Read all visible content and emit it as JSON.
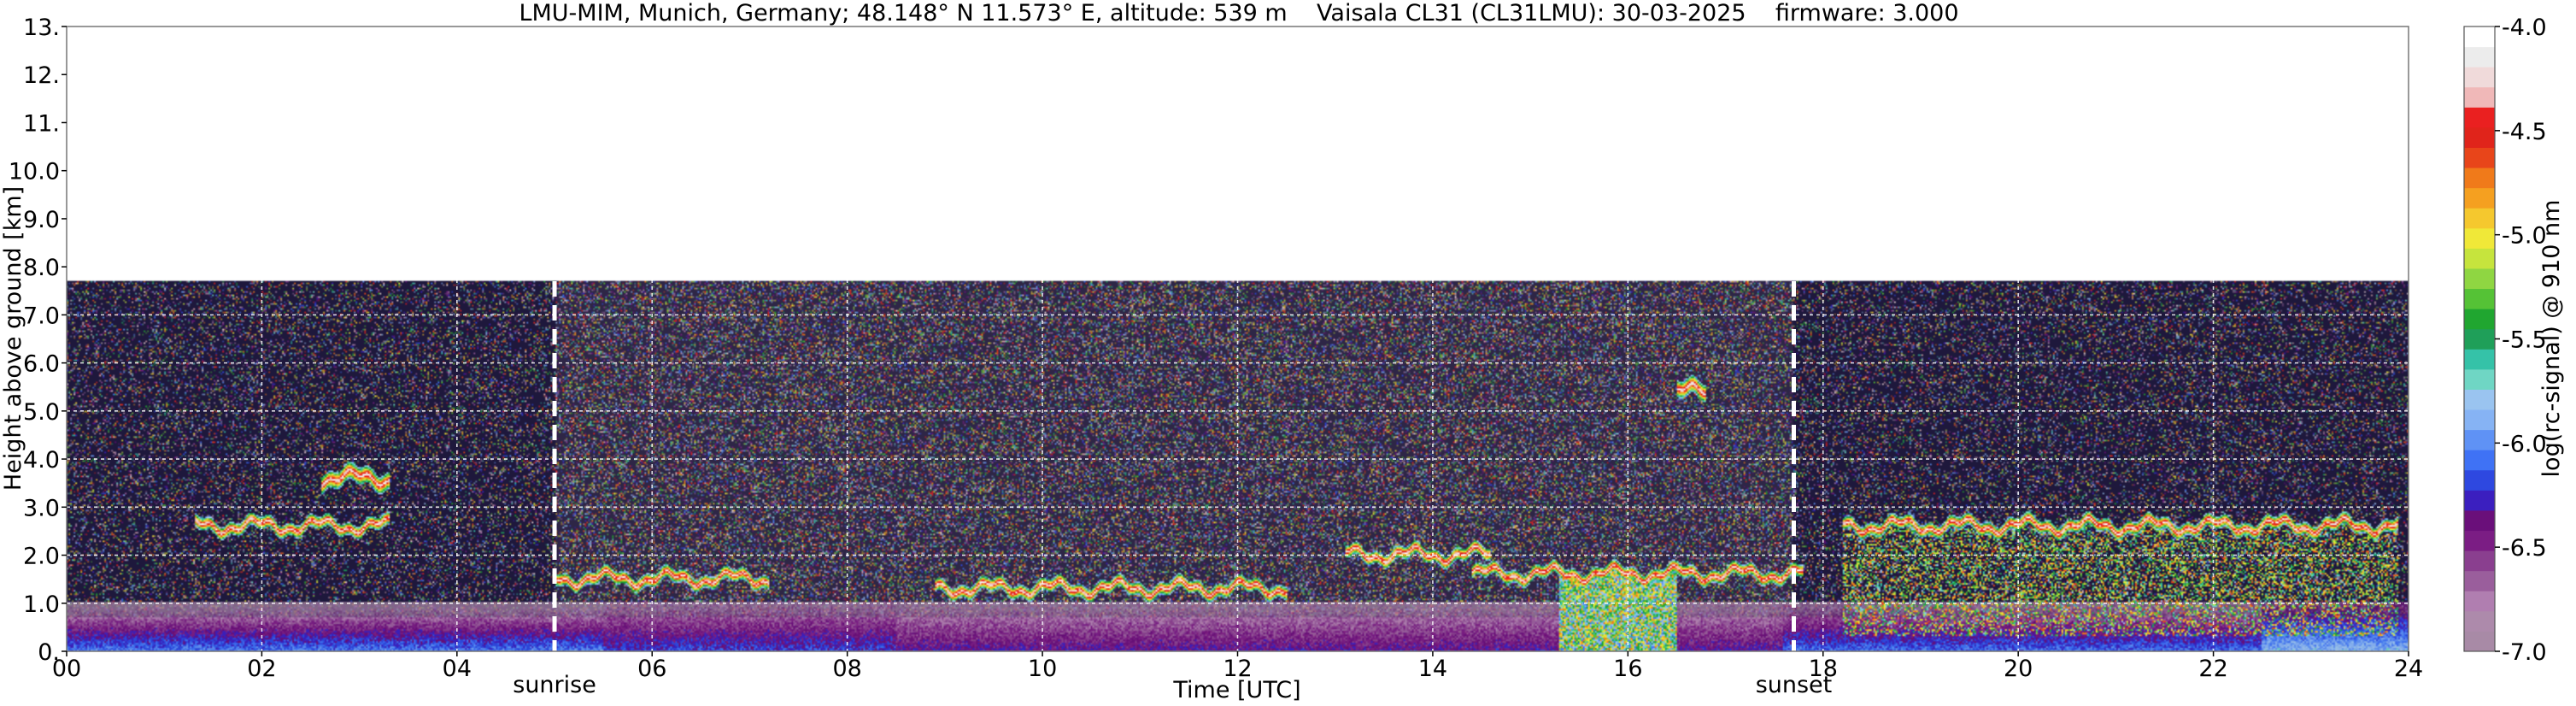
{
  "chart_data": {
    "type": "heatmap",
    "title": "LMU-MIM, Munich, Germany; 48.148° N 11.573° E, altitude: 539 m    Vaisala CL31 (CL31LMU): 30-03-2025    firmware: 3.000",
    "xlabel": "Time [UTC]",
    "ylabel": "Height above ground [km]",
    "xlim": [
      0,
      24
    ],
    "ylim": [
      0,
      13
    ],
    "x_ticks": [
      {
        "value": 0,
        "label": "00"
      },
      {
        "value": 2,
        "label": "02"
      },
      {
        "value": 4,
        "label": "04"
      },
      {
        "value": 6,
        "label": "06"
      },
      {
        "value": 8,
        "label": "08"
      },
      {
        "value": 10,
        "label": "10"
      },
      {
        "value": 12,
        "label": "12"
      },
      {
        "value": 14,
        "label": "14"
      },
      {
        "value": 16,
        "label": "16"
      },
      {
        "value": 18,
        "label": "18"
      },
      {
        "value": 20,
        "label": "20"
      },
      {
        "value": 22,
        "label": "22"
      },
      {
        "value": 24,
        "label": "24"
      }
    ],
    "y_ticks": [
      {
        "value": 0,
        "label": "0."
      },
      {
        "value": 1,
        "label": "1.0"
      },
      {
        "value": 2,
        "label": "2.0"
      },
      {
        "value": 3,
        "label": "3.0"
      },
      {
        "value": 4,
        "label": "4.0"
      },
      {
        "value": 5,
        "label": "5.0"
      },
      {
        "value": 6,
        "label": "6.0"
      },
      {
        "value": 7,
        "label": "7.0"
      },
      {
        "value": 8,
        "label": "8.0"
      },
      {
        "value": 9,
        "label": "9.0"
      },
      {
        "value": 10,
        "label": "10.0"
      },
      {
        "value": 11,
        "label": "11."
      },
      {
        "value": 12,
        "label": "12."
      },
      {
        "value": 13,
        "label": "13."
      }
    ],
    "grid": true,
    "data_max_height_km": 7.7,
    "events": [
      {
        "label": "sunrise",
        "time": 5.0
      },
      {
        "label": "sunset",
        "time": 17.7
      }
    ],
    "colorbar": {
      "label": "log(rc-signal) @ 910 nm",
      "range": [
        -7.0,
        -4.0
      ],
      "ticks": [
        {
          "value": -4.0,
          "label": "-4.0"
        },
        {
          "value": -4.5,
          "label": "-4.5"
        },
        {
          "value": -5.0,
          "label": "-5.0"
        },
        {
          "value": -5.5,
          "label": "-5.5"
        },
        {
          "value": -6.0,
          "label": "-6.0"
        },
        {
          "value": -6.5,
          "label": "-6.5"
        },
        {
          "value": -7.0,
          "label": "-7.0"
        }
      ],
      "colors": [
        "#a88aa6",
        "#ad8aab",
        "#b07eb0",
        "#9a5e9c",
        "#8a3f8f",
        "#7b1d84",
        "#6a0f7a",
        "#3b1fbf",
        "#2e48e0",
        "#3f72f5",
        "#5f92f5",
        "#86b3f4",
        "#9ac4f0",
        "#6fd6c4",
        "#35c2a8",
        "#1f9f59",
        "#20a630",
        "#55c236",
        "#8fd642",
        "#c6e43d",
        "#f0e838",
        "#f5c82e",
        "#f5a020",
        "#f07a1a",
        "#e8451a",
        "#e0241b",
        "#ea2020",
        "#f0b8b8",
        "#f0dada",
        "#ececec",
        "#ffffff"
      ]
    },
    "features": [
      {
        "name": "cloud layer",
        "time_range": [
          1.3,
          3.3
        ],
        "height_km": 2.6
      },
      {
        "name": "cloud layer",
        "time_range": [
          5.0,
          7.2
        ],
        "height_km": 1.5
      },
      {
        "name": "cloud layer",
        "time_range": [
          8.9,
          12.5
        ],
        "height_km": 1.3
      },
      {
        "name": "cloud layer",
        "time_range": [
          13.1,
          14.6
        ],
        "height_km": 2.0
      },
      {
        "name": "cloud layer",
        "time_range": [
          14.4,
          17.8
        ],
        "height_km": 1.6
      },
      {
        "name": "precipitation",
        "time_range": [
          15.3,
          16.5
        ],
        "height_km": 1.5
      },
      {
        "name": "cloud layer",
        "time_range": [
          18.2,
          23.9
        ],
        "height_km": 2.6
      },
      {
        "name": "aerosol layer",
        "time_range": [
          2.6,
          3.3
        ],
        "height_km": 3.6
      },
      {
        "name": "aerosol patch",
        "time_range": [
          16.5,
          16.8
        ],
        "height_km": 5.4
      }
    ]
  }
}
